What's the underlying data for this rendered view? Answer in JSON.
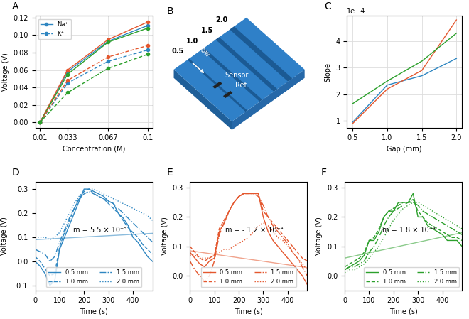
{
  "chart_data": [
    {
      "type": "line",
      "panel_label": "A",
      "x_label": "Concentration (M)",
      "y_label": "Voltage (V)",
      "x": [
        0.01,
        0.033,
        0.067,
        0.1
      ],
      "xlim": [
        0.006,
        0.104
      ],
      "xticks": [
        0.01,
        0.033,
        0.067,
        0.1
      ],
      "ylim": [
        -0.006,
        0.122
      ],
      "yticks": [
        {
          "value": 0.0,
          "label": "0.00"
        },
        {
          "value": 0.02,
          "label": "0.02"
        },
        {
          "value": 0.04,
          "label": "0.04"
        },
        {
          "value": 0.06,
          "label": "0.06"
        },
        {
          "value": 0.08,
          "label": "0.08"
        },
        {
          "value": 0.1,
          "label": "0.10"
        },
        {
          "value": 0.12,
          "label": "0.12"
        }
      ],
      "grid": true,
      "legend": "upper left",
      "series": [
        {
          "name": "Na⁺",
          "color": "#2e86c1",
          "line_style": "solid",
          "marker": "circle",
          "values": [
            0.0,
            0.058,
            0.093,
            0.111
          ]
        },
        {
          "color": "#e4572e",
          "line_style": "solid",
          "marker": "circle",
          "values": [
            0.0,
            0.06,
            0.095,
            0.115
          ]
        },
        {
          "color": "#2ca02c",
          "line_style": "solid",
          "marker": "circle",
          "values": [
            0.0,
            0.055,
            0.092,
            0.108
          ]
        },
        {
          "name": "K⁺",
          "color": "#2e86c1",
          "line_style": "dashed",
          "marker": "circle",
          "values": [
            0.0,
            0.045,
            0.07,
            0.083
          ]
        },
        {
          "color": "#e4572e",
          "line_style": "dashed",
          "marker": "circle",
          "values": [
            0.0,
            0.048,
            0.075,
            0.088
          ]
        },
        {
          "color": "#2ca02c",
          "line_style": "dashed",
          "marker": "circle",
          "values": [
            0.0,
            0.034,
            0.062,
            0.078
          ]
        }
      ]
    },
    {
      "type": "diagram",
      "panel_label": "B",
      "grooves": [
        "0.5",
        "1.0",
        "1.5",
        "2.0"
      ],
      "flow_label": "Flow",
      "sensor_label": "Sensor",
      "reference_label": "Ref.",
      "color": "#2f80c8"
    },
    {
      "type": "line",
      "panel_label": "C",
      "x_label": "Gap (mm)",
      "y_label": "Slope",
      "annotation": "1e−4",
      "x": [
        0.5,
        1.0,
        1.5,
        2.0
      ],
      "xlim": [
        0.42,
        2.08
      ],
      "xticks": [
        0.5,
        1.0,
        1.5,
        2.0
      ],
      "ylim": [
        7.5e-05,
        0.000495
      ],
      "yticks": [
        {
          "value": 0.0001,
          "label": "1"
        },
        {
          "value": 0.0002,
          "label": "2"
        },
        {
          "value": 0.0003,
          "label": "3"
        },
        {
          "value": 0.0004,
          "label": "4"
        }
      ],
      "grid": true,
      "series": [
        {
          "color": "#2e86c1",
          "line_style": "solid",
          "values": [
            9.5e-05,
            0.000235,
            0.00027,
            0.000335
          ]
        },
        {
          "color": "#e4572e",
          "line_style": "solid",
          "values": [
            9e-05,
            0.00022,
            0.00029,
            0.00048
          ]
        },
        {
          "color": "#2ca02c",
          "line_style": "solid",
          "values": [
            0.000165,
            0.00025,
            0.000325,
            0.00043
          ]
        }
      ]
    },
    {
      "type": "line",
      "panel_label": "D",
      "x_label": "Time (s)",
      "y_label": "Voltage (V)",
      "annotation": "m = 5.5 × 10⁻⁵",
      "x": [
        0,
        20,
        40,
        60,
        80,
        100,
        120,
        140,
        160,
        180,
        200,
        220,
        240,
        260,
        280,
        300,
        320,
        340,
        360,
        380,
        400,
        420,
        440,
        460,
        480
      ],
      "xlim": [
        0,
        480
      ],
      "xticks": [
        0,
        100,
        200,
        300,
        400
      ],
      "ylim": [
        -0.12,
        0.33
      ],
      "yticks": [
        {
          "value": -0.1,
          "label": "−0.1"
        },
        0.0,
        0.1,
        0.2,
        0.3
      ],
      "grid": false,
      "legend": "lower center",
      "fit": {
        "x": [
          0,
          480
        ],
        "values": [
          0.09,
          0.1164
        ],
        "color": "#2e86c1"
      },
      "series": [
        {
          "name": "0.5 mm",
          "color": "#2e86c1",
          "line_style": "solid",
          "values": [
            0.0,
            -0.02,
            -0.05,
            -0.1,
            -0.08,
            0.05,
            0.1,
            0.15,
            0.2,
            0.25,
            0.3,
            0.3,
            0.29,
            0.28,
            0.27,
            0.25,
            0.24,
            0.2,
            0.18,
            0.15,
            0.1,
            0.08,
            0.05,
            0.02,
            0.0
          ]
        },
        {
          "name": "1.0 mm",
          "color": "#2e86c1",
          "line_style": "dashed",
          "values": [
            0.02,
            0.0,
            -0.03,
            -0.06,
            -0.05,
            0.06,
            0.12,
            0.17,
            0.22,
            0.26,
            0.29,
            0.3,
            0.28,
            0.27,
            0.26,
            0.24,
            0.22,
            0.2,
            0.17,
            0.14,
            0.12,
            0.1,
            0.07,
            0.05,
            0.03
          ]
        },
        {
          "name": "1.5 mm",
          "color": "#2e86c1",
          "line_style": "dashdot",
          "values": [
            0.05,
            0.04,
            0.03,
            0.0,
            0.02,
            0.08,
            0.13,
            0.18,
            0.22,
            0.26,
            0.28,
            0.29,
            0.28,
            0.27,
            0.26,
            0.25,
            0.24,
            0.22,
            0.2,
            0.18,
            0.16,
            0.14,
            0.12,
            0.1,
            0.08
          ]
        },
        {
          "name": "2.0 mm",
          "color": "#2e86c1",
          "line_style": "dotted",
          "values": [
            0.1,
            0.1,
            0.1,
            0.09,
            0.1,
            0.12,
            0.16,
            0.2,
            0.24,
            0.27,
            0.29,
            0.3,
            0.3,
            0.29,
            0.28,
            0.27,
            0.26,
            0.25,
            0.24,
            0.23,
            0.22,
            0.21,
            0.2,
            0.19,
            0.17
          ]
        }
      ]
    },
    {
      "type": "line",
      "panel_label": "E",
      "x_label": "Time (s)",
      "y_label": "Voltage (V)",
      "annotation": "m = - 1.2 × 10⁻⁴",
      "x": [
        0,
        20,
        40,
        60,
        80,
        100,
        120,
        140,
        160,
        180,
        200,
        220,
        240,
        260,
        280,
        300,
        320,
        340,
        360,
        380,
        400,
        420,
        440,
        460,
        480
      ],
      "xlim": [
        0,
        480
      ],
      "xticks": [
        0,
        100,
        200,
        300,
        400
      ],
      "ylim": [
        -0.05,
        0.32
      ],
      "yticks": [
        0.0,
        0.1,
        0.2,
        0.3
      ],
      "grid": false,
      "legend": "lower center",
      "fit": {
        "x": [
          0,
          480
        ],
        "values": [
          0.085,
          0.0274
        ],
        "color": "#e4572e"
      },
      "series": [
        {
          "name": "0.5 mm",
          "color": "#e4572e",
          "line_style": "solid",
          "values": [
            0.08,
            0.06,
            0.04,
            0.03,
            0.05,
            0.06,
            0.15,
            0.18,
            0.22,
            0.25,
            0.27,
            0.28,
            0.28,
            0.28,
            0.28,
            0.2,
            0.15,
            0.12,
            0.1,
            0.08,
            0.06,
            0.04,
            0.02,
            0.0,
            -0.03
          ]
        },
        {
          "name": "1.0 mm",
          "color": "#e4572e",
          "line_style": "dashed",
          "values": [
            0.1,
            0.08,
            0.06,
            0.05,
            0.06,
            0.07,
            0.16,
            0.19,
            0.22,
            0.25,
            0.27,
            0.28,
            0.28,
            0.28,
            0.28,
            0.22,
            0.2,
            0.18,
            0.16,
            0.14,
            0.12,
            0.1,
            0.08,
            0.06,
            0.05
          ]
        },
        {
          "name": "1.5 mm",
          "color": "#e4572e",
          "line_style": "dashdot",
          "values": [
            0.05,
            0.02,
            0.0,
            -0.02,
            0.0,
            0.05,
            0.14,
            0.18,
            0.22,
            0.25,
            0.27,
            0.28,
            0.28,
            0.28,
            0.27,
            0.24,
            0.2,
            0.17,
            0.15,
            0.13,
            0.11,
            0.08,
            0.06,
            0.03,
            0.0
          ]
        },
        {
          "name": "2.0 mm",
          "color": "#e4572e",
          "line_style": "dotted",
          "values": [
            0.07,
            0.07,
            0.06,
            0.06,
            0.06,
            0.07,
            0.08,
            0.09,
            0.09,
            0.1,
            0.11,
            0.12,
            0.13,
            0.15,
            0.17,
            0.18,
            0.17,
            0.15,
            0.13,
            0.12,
            0.1,
            0.08,
            0.06,
            0.04,
            0.02
          ]
        }
      ]
    },
    {
      "type": "line",
      "panel_label": "F",
      "x_label": "Time (s)",
      "y_label": "Voltage (V)",
      "annotation": "m = 1.8 × 10⁻⁴",
      "x": [
        0,
        20,
        40,
        60,
        80,
        100,
        120,
        140,
        160,
        180,
        200,
        220,
        240,
        260,
        280,
        300,
        320,
        340,
        360,
        380,
        400,
        420,
        440,
        460,
        480
      ],
      "xlim": [
        0,
        480
      ],
      "xticks": [
        0,
        100,
        200,
        300,
        400
      ],
      "ylim": [
        -0.05,
        0.32
      ],
      "yticks": [
        0.0,
        0.1,
        0.2,
        0.3
      ],
      "grid": false,
      "legend": "lower right",
      "fit": {
        "x": [
          0,
          480
        ],
        "values": [
          0.06,
          0.1464
        ],
        "color": "#2ca02c"
      },
      "series": [
        {
          "name": "0.5 mm",
          "color": "#2ca02c",
          "line_style": "solid",
          "values": [
            0.02,
            0.03,
            0.04,
            0.05,
            0.07,
            0.12,
            0.12,
            0.15,
            0.2,
            0.22,
            0.22,
            0.25,
            0.25,
            0.25,
            0.28,
            0.2,
            0.2,
            0.17,
            0.16,
            0.15,
            0.14,
            0.12,
            0.12,
            0.12,
            0.1
          ]
        },
        {
          "name": "1.0 mm",
          "color": "#2ca02c",
          "line_style": "dashed",
          "values": [
            0.03,
            0.04,
            0.05,
            0.06,
            0.08,
            0.12,
            0.13,
            0.16,
            0.2,
            0.22,
            0.23,
            0.24,
            0.25,
            0.25,
            0.26,
            0.22,
            0.2,
            0.18,
            0.17,
            0.16,
            0.15,
            0.14,
            0.13,
            0.13,
            0.12
          ]
        },
        {
          "name": "1.5 mm",
          "color": "#2ca02c",
          "line_style": "dashdot",
          "values": [
            0.02,
            0.03,
            0.03,
            0.04,
            0.05,
            0.08,
            0.1,
            0.13,
            0.17,
            0.2,
            0.22,
            0.23,
            0.24,
            0.25,
            0.25,
            0.24,
            0.22,
            0.21,
            0.2,
            0.19,
            0.18,
            0.17,
            0.16,
            0.15,
            0.14
          ]
        },
        {
          "name": "2.0 mm",
          "color": "#2ca02c",
          "line_style": "dotted",
          "values": [
            0.01,
            0.02,
            0.02,
            0.03,
            0.04,
            0.06,
            0.08,
            0.1,
            0.13,
            0.16,
            0.19,
            0.21,
            0.23,
            0.24,
            0.25,
            0.25,
            0.24,
            0.23,
            0.22,
            0.21,
            0.2,
            0.19,
            0.18,
            0.17,
            0.16
          ]
        }
      ]
    }
  ]
}
